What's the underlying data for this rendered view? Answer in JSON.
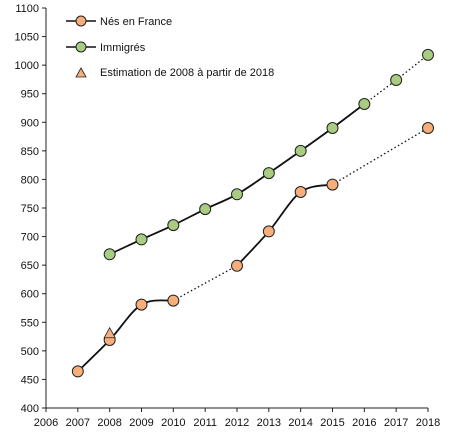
{
  "chart_data": {
    "type": "line",
    "title": "",
    "xlabel": "",
    "ylabel": "",
    "xlim": [
      2006,
      2018
    ],
    "ylim": [
      400,
      1100
    ],
    "x_ticks": [
      2006,
      2007,
      2008,
      2009,
      2010,
      2011,
      2012,
      2013,
      2014,
      2015,
      2016,
      2017,
      2018
    ],
    "y_ticks": [
      400,
      450,
      500,
      550,
      600,
      650,
      700,
      750,
      800,
      850,
      900,
      950,
      1000,
      1050,
      1100
    ],
    "grid": false,
    "legend_position": "top-left",
    "series": [
      {
        "name": "Nés en France",
        "marker": "circle",
        "color": "#f6ae7a",
        "points": [
          {
            "x": 2007,
            "y": 464
          },
          {
            "x": 2008,
            "y": 519
          },
          {
            "x": 2009,
            "y": 581
          },
          {
            "x": 2010,
            "y": 588
          },
          {
            "x": 2012,
            "y": 649
          },
          {
            "x": 2013,
            "y": 709
          },
          {
            "x": 2014,
            "y": 778
          },
          {
            "x": 2015,
            "y": 791
          },
          {
            "x": 2018,
            "y": 890
          }
        ],
        "solid_segments": [
          [
            2007,
            2008,
            2009,
            2010
          ],
          [
            2012,
            2013,
            2014,
            2015
          ]
        ],
        "dotted_segments": [
          [
            2010,
            2012
          ],
          [
            2015,
            2018
          ]
        ]
      },
      {
        "name": "Immigrés",
        "marker": "circle",
        "color": "#a8cc82",
        "points": [
          {
            "x": 2008,
            "y": 669
          },
          {
            "x": 2009,
            "y": 695
          },
          {
            "x": 2010,
            "y": 720
          },
          {
            "x": 2011,
            "y": 748
          },
          {
            "x": 2012,
            "y": 774
          },
          {
            "x": 2013,
            "y": 811
          },
          {
            "x": 2014,
            "y": 850
          },
          {
            "x": 2015,
            "y": 890
          },
          {
            "x": 2016,
            "y": 932
          },
          {
            "x": 2017,
            "y": 974
          },
          {
            "x": 2018,
            "y": 1018
          }
        ],
        "solid_segments": [
          [
            2008,
            2009,
            2010,
            2011,
            2012,
            2013,
            2014,
            2015,
            2016
          ]
        ],
        "dotted_segments": [
          [
            2016,
            2017,
            2018
          ]
        ]
      },
      {
        "name": "Estimation de  2008 à partir de 2018",
        "marker": "triangle",
        "color": "#f6ae7a",
        "points": [
          {
            "x": 2008,
            "y": 530
          }
        ]
      }
    ]
  }
}
